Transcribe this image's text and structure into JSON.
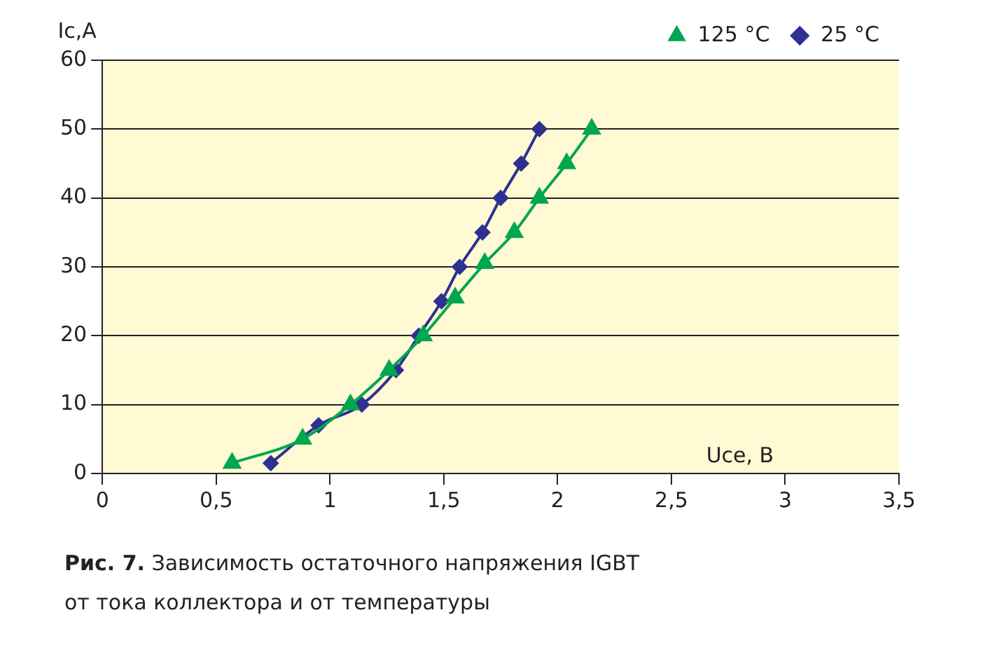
{
  "chart_data": {
    "type": "line",
    "xlabel": "Uce, B",
    "ylabel": "Ic,A",
    "xlim": [
      0,
      3.5
    ],
    "xticks": [
      0,
      {
        "value": 0.5,
        "label": "0,5"
      },
      1,
      {
        "value": 1.5,
        "label": "1,5"
      },
      2,
      {
        "value": 2.5,
        "label": "2,5"
      },
      3,
      {
        "value": 3.5,
        "label": "3,5"
      }
    ],
    "ylim": [
      0,
      60
    ],
    "yticks": [
      0,
      10,
      20,
      30,
      40,
      50,
      60
    ],
    "grid": "y",
    "legend": "top right",
    "series": [
      {
        "name": "25 °C",
        "color": "#2e3192",
        "marker": "diamond",
        "x": [
          0.74,
          0.95,
          1.14,
          1.29,
          1.39,
          1.49,
          1.57,
          1.67,
          1.75,
          1.84,
          1.92
        ],
        "values": [
          1.5,
          7,
          10,
          15,
          20,
          25,
          30,
          35,
          40,
          45,
          50
        ]
      },
      {
        "name": "125 °C",
        "color": "#00a650",
        "marker": "triangle",
        "x": [
          0.57,
          0.88,
          1.09,
          1.26,
          1.41,
          1.55,
          1.68,
          1.81,
          1.92,
          2.04,
          2.15
        ],
        "values": [
          1.5,
          5,
          10,
          15,
          20,
          25.5,
          30.5,
          35,
          40,
          45,
          50
        ]
      }
    ],
    "annotations": [
      "Рис. 7.",
      "Зависимость остаточного напряжения IGBT",
      "от тока коллектора и от температуры"
    ]
  }
}
